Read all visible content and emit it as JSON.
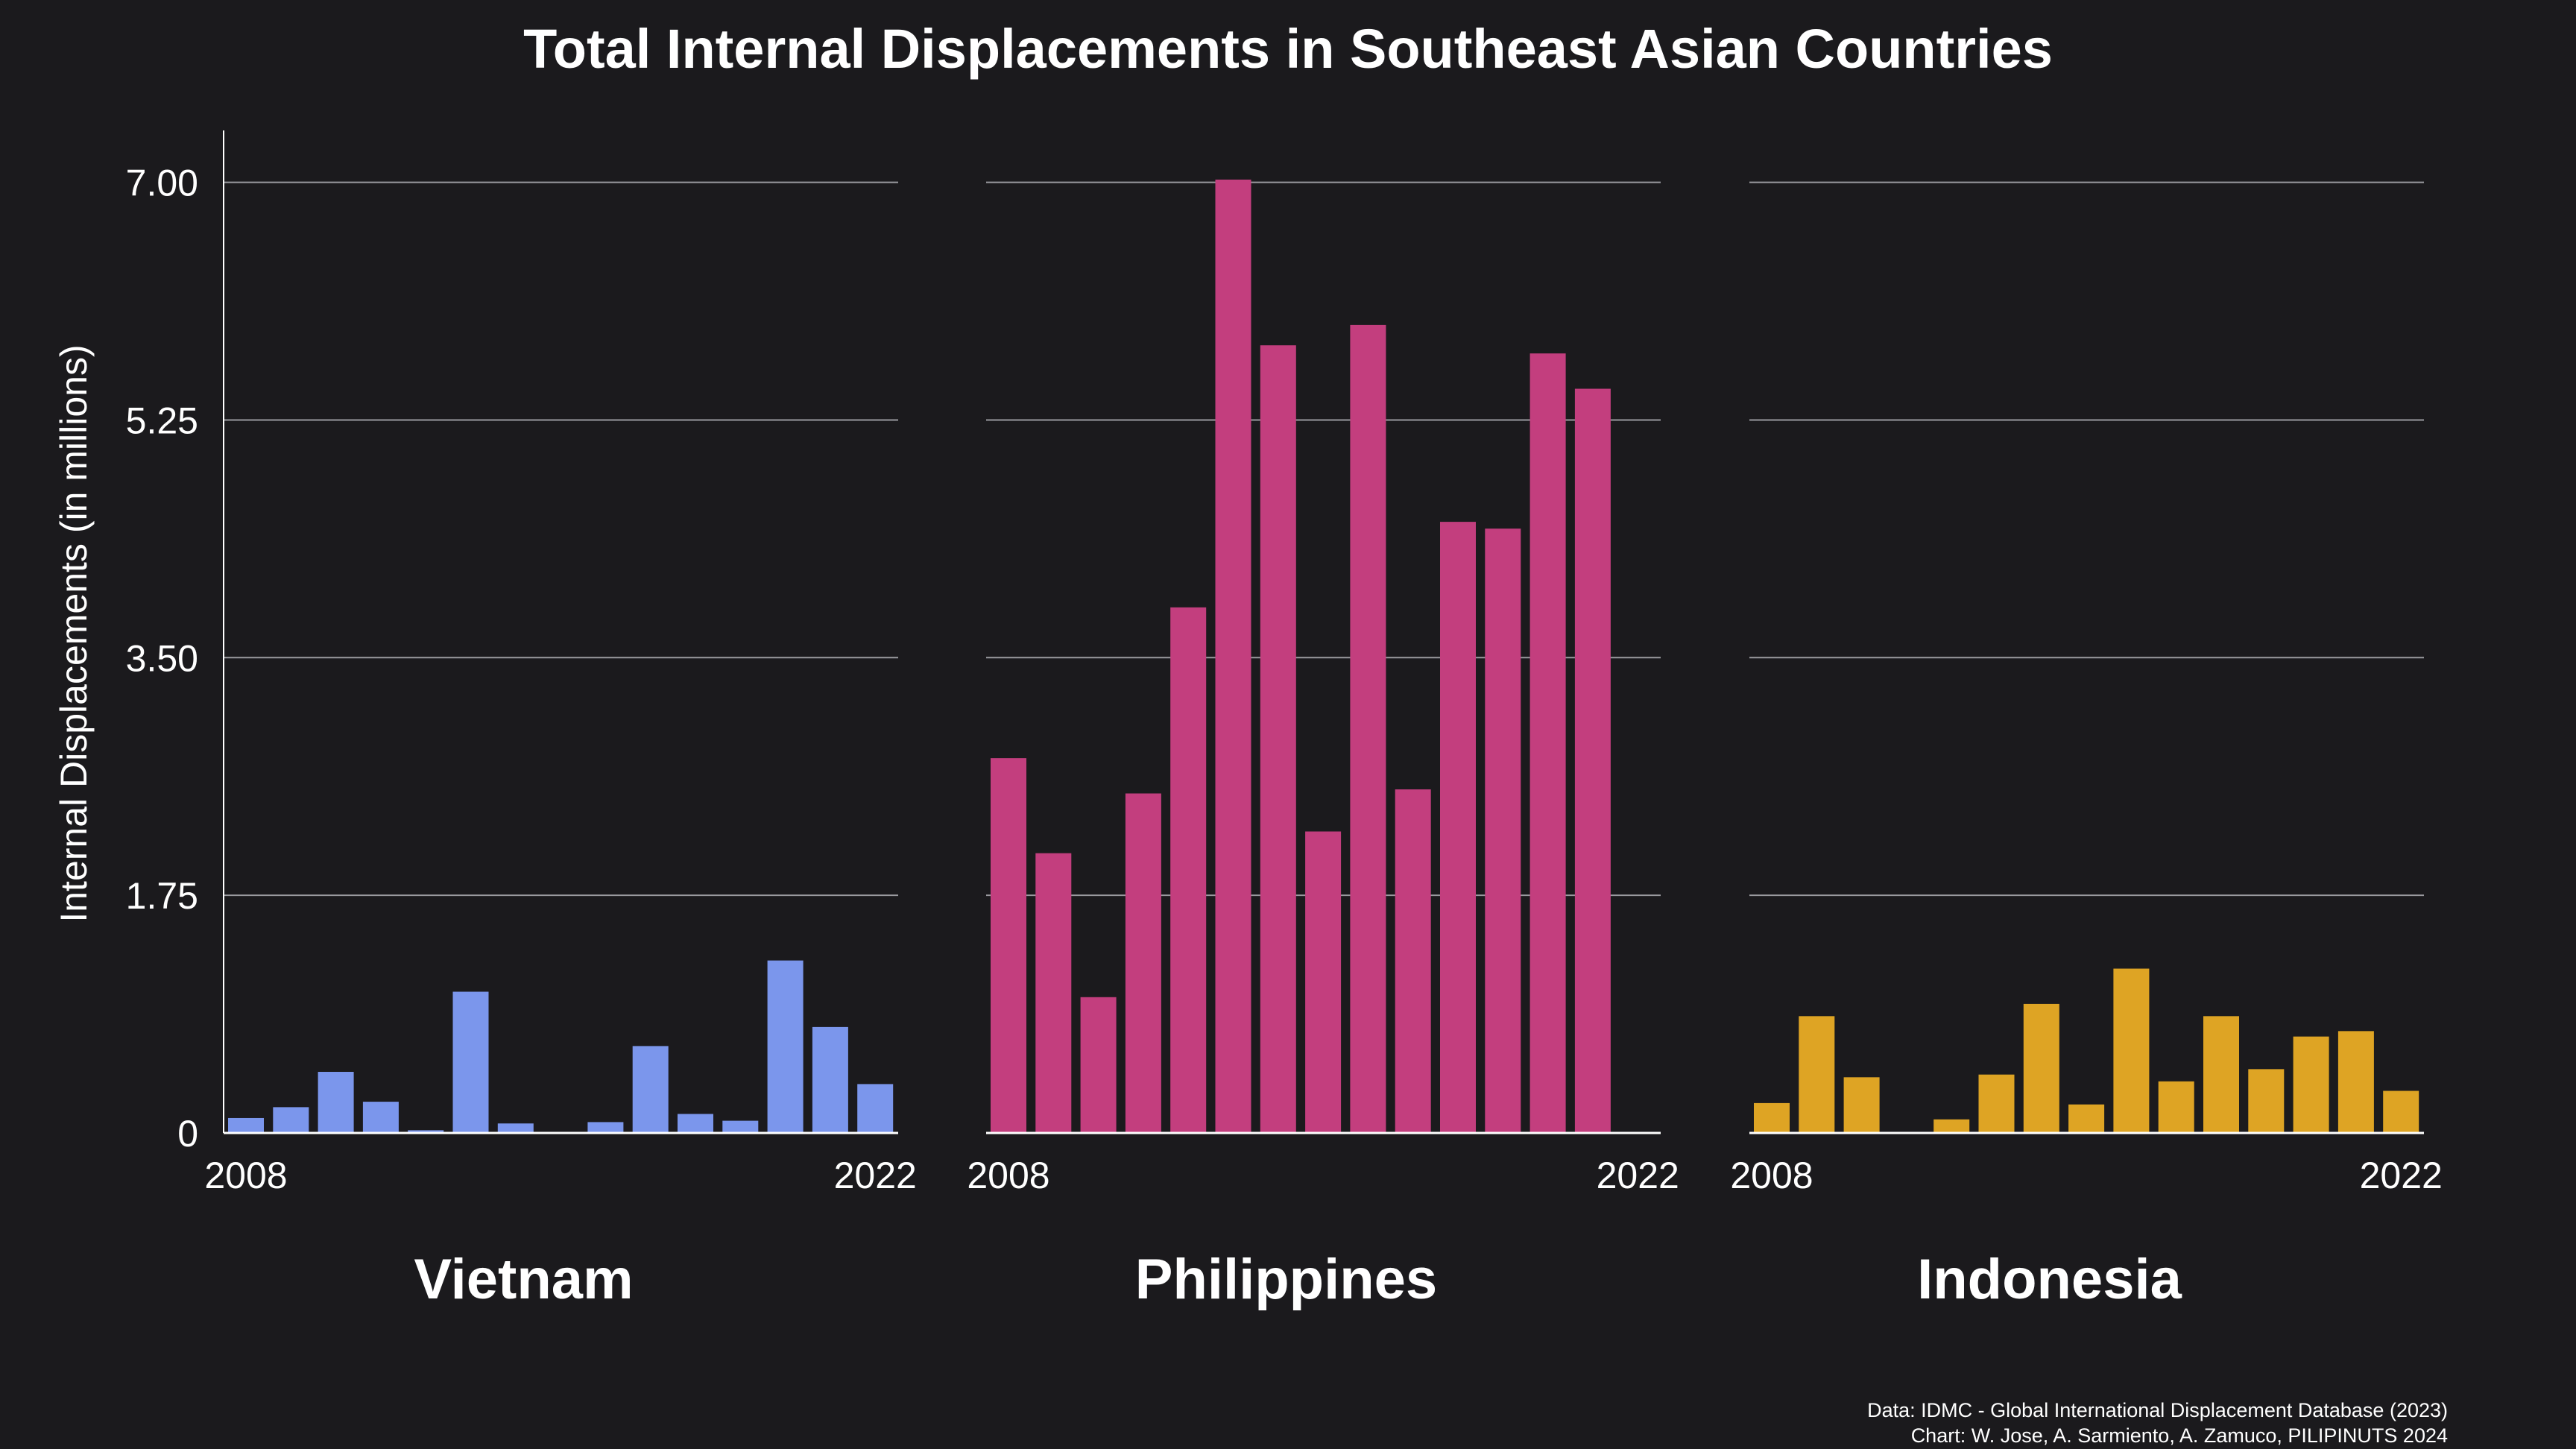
{
  "chart_data": {
    "type": "bar",
    "title": "Total Internal Displacements in Southeast Asian Countries",
    "ylabel": "Internal Displacements (in millions)",
    "ylim": [
      0,
      7.35
    ],
    "yticks": [
      "0",
      "1.75",
      "3.50",
      "5.25",
      "7.00"
    ],
    "ytick_values": [
      0,
      1.75,
      3.5,
      5.25,
      7.0
    ],
    "years": [
      2008,
      2009,
      2010,
      2011,
      2012,
      2013,
      2014,
      2015,
      2016,
      2017,
      2018,
      2019,
      2020,
      2021,
      2022
    ],
    "xtick_labels": [
      "2008",
      "2022"
    ],
    "grid": true,
    "panels": [
      {
        "name": "Vietnam",
        "color": "#7b96ec",
        "values": [
          0.11,
          0.19,
          0.45,
          0.23,
          0.02,
          1.04,
          0.07,
          0.0,
          0.08,
          0.64,
          0.14,
          0.09,
          1.27,
          0.78,
          0.36
        ]
      },
      {
        "name": "Philippines",
        "color": "#c33e7e",
        "values": [
          2.76,
          2.06,
          1.0,
          2.5,
          3.87,
          7.02,
          5.8,
          2.22,
          5.95,
          2.53,
          4.5,
          4.45,
          5.74,
          5.48,
          0.0
        ]
      },
      {
        "name": "Indonesia",
        "color": "#dea424",
        "values": [
          0.22,
          0.86,
          0.41,
          0.0,
          0.1,
          0.43,
          0.95,
          0.21,
          1.21,
          0.38,
          0.86,
          0.47,
          0.71,
          0.75,
          0.31
        ]
      }
    ],
    "caption": [
      "Data: IDMC - Global International Displacement Database (2023)",
      "Chart: W. Jose, A. Sarmiento, A. Zamuco, PILIPINUTS 2024"
    ]
  }
}
